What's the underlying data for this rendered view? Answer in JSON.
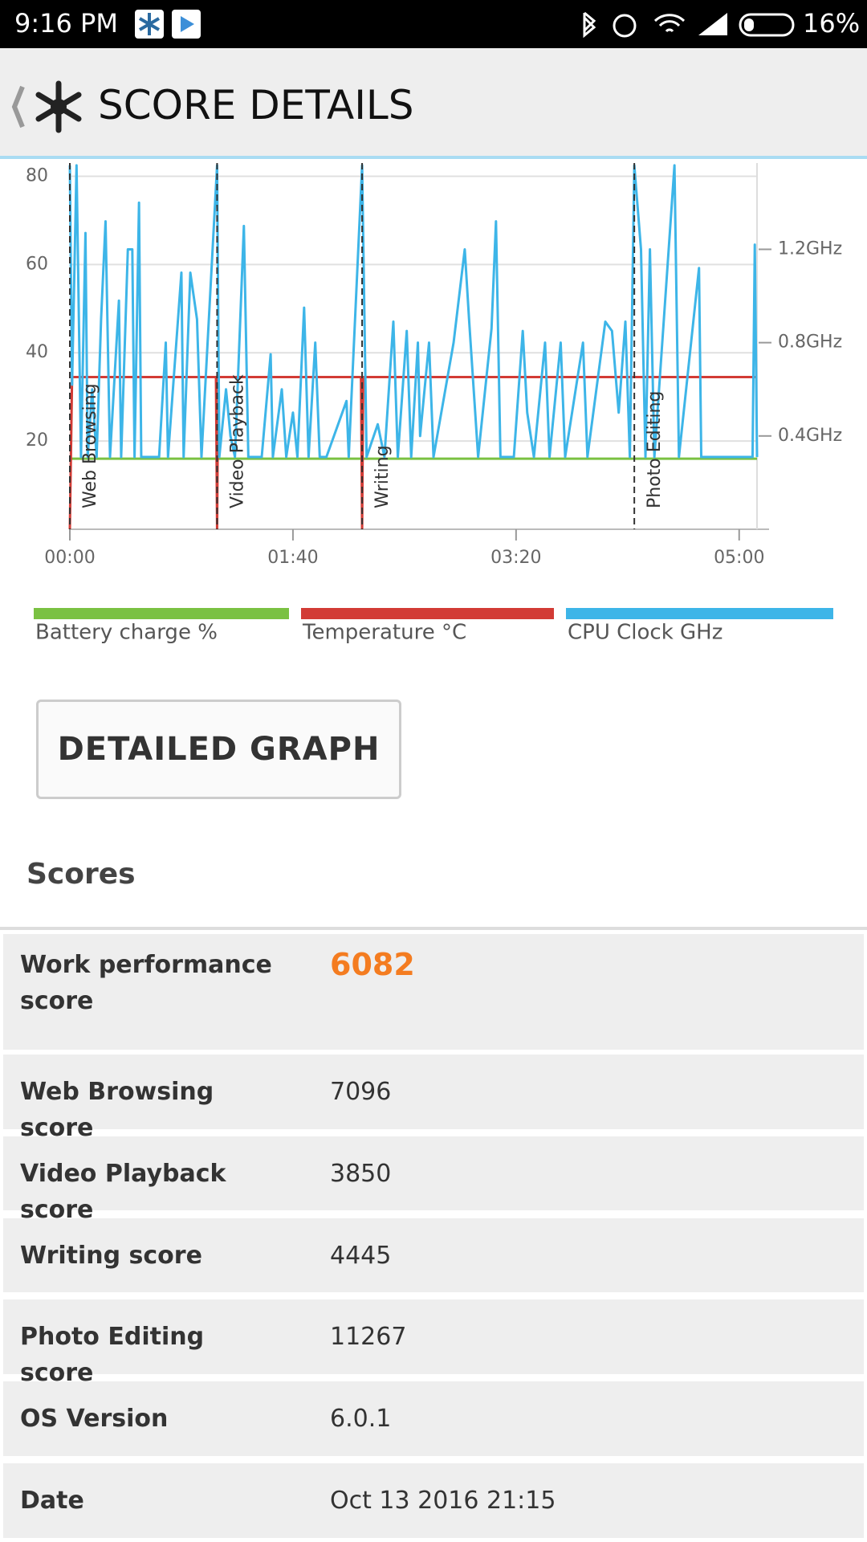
{
  "status_bar": {
    "time": "9:16 PM",
    "battery": "16%"
  },
  "header": {
    "title": "SCORE DETAILS"
  },
  "chart_data": {
    "type": "line",
    "xlim": [
      0,
      308
    ],
    "xticks": [
      {
        "value": 0,
        "label": "00:00"
      },
      {
        "value": 100,
        "label": "01:40"
      },
      {
        "value": 200,
        "label": "03:20"
      },
      {
        "value": 300,
        "label": "05:00"
      }
    ],
    "ylim": [
      0,
      83
    ],
    "yticks": [
      20,
      40,
      60,
      80
    ],
    "y2lim": [
      0,
      1.57
    ],
    "y2ticks": [
      {
        "value": 0.4,
        "label": "0.4GHz"
      },
      {
        "value": 0.8,
        "label": "0.8GHz"
      },
      {
        "value": 1.2,
        "label": "1.2GHz"
      }
    ],
    "grid": true,
    "annotations": [
      {
        "text": "Web Browsing",
        "x": 0
      },
      {
        "text": "Video Playback",
        "x": 66
      },
      {
        "text": "Writing",
        "x": 131
      },
      {
        "text": "Photo Editing",
        "x": 253
      }
    ],
    "series": [
      {
        "name": "Battery charge %",
        "color": "#7ac142",
        "x": [
          0,
          308
        ],
        "values": [
          16,
          16
        ]
      },
      {
        "name": "Temperature °C",
        "color": "#d23b35",
        "x": [
          0,
          1,
          65.5,
          66,
          66.5,
          130.5,
          131,
          131.5,
          308
        ],
        "values": [
          0,
          34.5,
          34.5,
          0,
          34.5,
          34.5,
          0,
          34.5,
          34.5
        ]
      },
      {
        "name": "CPU Clock GHz",
        "color": "#3db5e8",
        "axis": "y2",
        "x": [
          0,
          1,
          3,
          5,
          7,
          8,
          10,
          12,
          14,
          16,
          18,
          22,
          23,
          26,
          28,
          29,
          31,
          32,
          40,
          43,
          44,
          50,
          51,
          54,
          57,
          59,
          66,
          67,
          70,
          72,
          74,
          78,
          80,
          86,
          90,
          91,
          95,
          97,
          100,
          102,
          105,
          107,
          110,
          112,
          115,
          124,
          125,
          131,
          133,
          138,
          141,
          145,
          147,
          151,
          153,
          156,
          157,
          161,
          163,
          172,
          177,
          179,
          183,
          189,
          191,
          193,
          199,
          203,
          205,
          208,
          213,
          215,
          220,
          222,
          230,
          232,
          240,
          243,
          246,
          249,
          251,
          253,
          256,
          258,
          260,
          262,
          271,
          273,
          282,
          283,
          306,
          307,
          308
        ],
        "values": [
          1.56,
          0.62,
          1.56,
          0.31,
          1.27,
          0.31,
          0.6,
          0.31,
          0.9,
          1.32,
          0.31,
          0.98,
          0.31,
          1.2,
          1.2,
          0.31,
          1.4,
          0.31,
          0.31,
          0.8,
          0.31,
          1.1,
          0.31,
          1.1,
          0.9,
          0.31,
          1.56,
          0.31,
          0.6,
          0.4,
          0.31,
          1.3,
          0.31,
          0.31,
          0.75,
          0.31,
          0.6,
          0.31,
          0.5,
          0.31,
          0.95,
          0.31,
          0.8,
          0.31,
          0.31,
          0.55,
          0.31,
          1.56,
          0.31,
          0.45,
          0.31,
          0.89,
          0.31,
          0.85,
          0.31,
          0.8,
          0.4,
          0.8,
          0.31,
          0.8,
          1.2,
          0.89,
          0.31,
          0.86,
          1.32,
          0.31,
          0.31,
          0.85,
          0.5,
          0.31,
          0.8,
          0.31,
          0.8,
          0.31,
          0.8,
          0.31,
          0.89,
          0.85,
          0.5,
          0.89,
          0.31,
          1.56,
          1.2,
          0.31,
          1.2,
          0.31,
          1.56,
          0.31,
          1.12,
          0.31,
          0.31,
          1.22,
          0.31
        ]
      }
    ]
  },
  "button": "DETAILED GRAPH",
  "scores": {
    "heading": "Scores",
    "rows": [
      [
        "Work performance score",
        "6082"
      ],
      [
        "Web Browsing score",
        "7096"
      ],
      [
        "Video Playback score",
        "3850"
      ],
      [
        "Writing score",
        "4445"
      ],
      [
        "Photo Editing score",
        "11267"
      ],
      [
        "OS Version",
        "6.0.1"
      ],
      [
        "Date",
        "Oct 13 2016 21:15"
      ]
    ]
  }
}
